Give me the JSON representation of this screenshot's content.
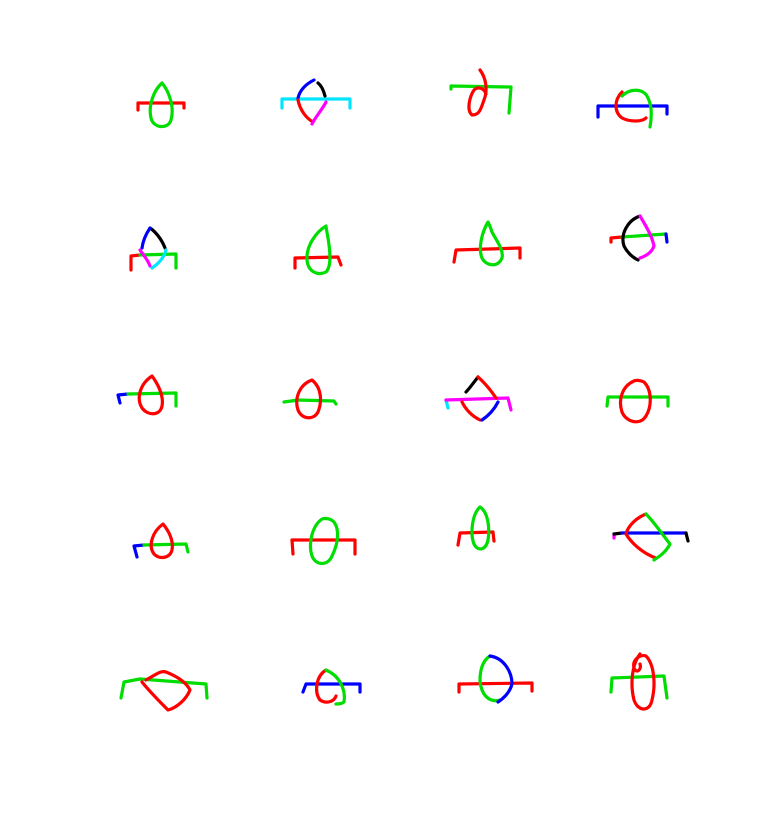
{
  "colors": {
    "red": "#ff0000",
    "green": "#00dd00",
    "blue": "#0000ff",
    "cyan": "#00e5ff",
    "magenta": "#ff00ff",
    "black": "#000000"
  },
  "grid": {
    "rows": 5,
    "columns": 4,
    "glyph_count": 20
  }
}
